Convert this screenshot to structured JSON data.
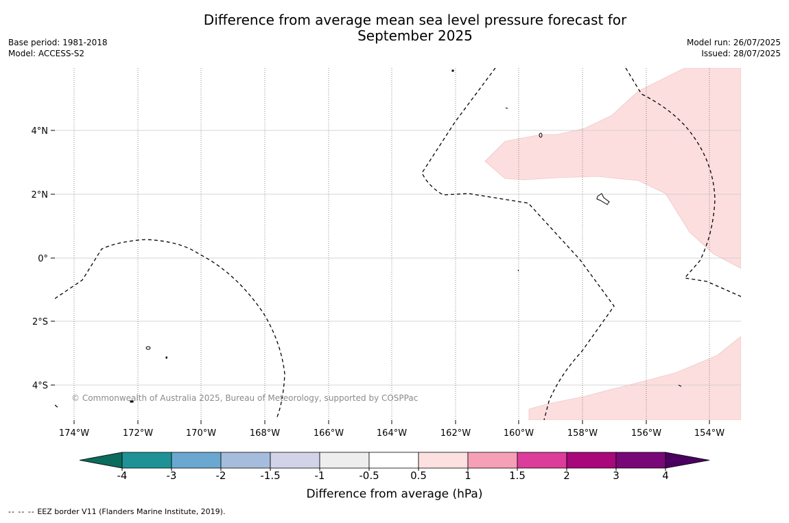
{
  "title_line1": "Difference from average mean sea level pressure forecast for",
  "title_line2": "September 2025",
  "meta_left": {
    "base_period": "Base period: 1981-2018",
    "model": "Model: ACCESS-S2"
  },
  "meta_right": {
    "model_run": "Model run: 26/07/2025",
    "issued": "Issued: 28/07/2025"
  },
  "copyright": "© Commonwealth of Australia 2025, Bureau of Meteorology, supported by COSPPac",
  "latitude_labels": [
    "4°N",
    "2°N",
    "0°",
    "2°S",
    "4°S"
  ],
  "longitude_labels": [
    "174°W",
    "172°W",
    "170°W",
    "168°W",
    "166°W",
    "164°W",
    "162°W",
    "160°W",
    "158°W",
    "156°W",
    "154°W"
  ],
  "colorbar": {
    "label": "Difference from average (hPa)",
    "ticks": [
      "-4",
      "-3",
      "-2",
      "-1.5",
      "-1",
      "-0.5",
      "0.5",
      "1",
      "1.5",
      "2",
      "3",
      "4"
    ],
    "colors": {
      "under": "#0b6b5c",
      "bins": [
        "#1f9296",
        "#6aa8d0",
        "#a6bcdc",
        "#d2d2e8",
        "#eeeeee",
        "#ffffff",
        "#fde0e0",
        "#f6a0b8",
        "#dc3c9a",
        "#a8087a",
        "#780878"
      ],
      "over": "#4b0060"
    }
  },
  "map_colors": {
    "positive_fill": "#fddede",
    "grid": "#c8c8c8",
    "meridian": "#555555",
    "contour": "#000000"
  },
  "footnote": {
    "symbol": "-- -- --",
    "text": "EEZ border V11 (Flanders Marine Institute, 2019)."
  }
}
